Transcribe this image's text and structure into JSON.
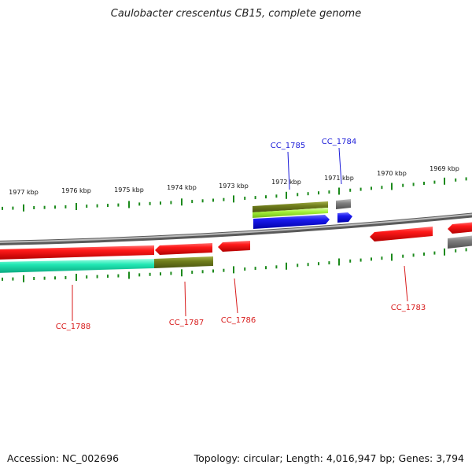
{
  "title": "Caulobacter crescentus CB15, complete genome",
  "footer": {
    "accession": "Accession: NC_002696",
    "summary": "Topology: circular; Length: 4,016,947 bp; Genes: 3,794"
  },
  "colors": {
    "backbone": "#8c8c8c",
    "tick": "#1c8a1c",
    "gene_red": "#ee1111",
    "gene_olive": "#6e7f1a",
    "gene_lime": "#a6f23a",
    "gene_blue": "#1414e6",
    "gene_teal": "#1ee6b0",
    "gene_gray": "#7a7a7a",
    "label_red": "#d81b1b",
    "label_blue": "#1b1bd8"
  },
  "kbp_labels": [
    "1977 kbp",
    "1976 kbp",
    "1975 kbp",
    "1974 kbp",
    "1973 kbp",
    "1972 kbp",
    "1971 kbp",
    "1970 kbp",
    "1969 kbp"
  ],
  "gene_labels": {
    "cc1788": "CC_1788",
    "cc1787": "CC_1787",
    "cc1786": "CC_1786",
    "cc1785": "CC_1785",
    "cc1784": "CC_1784",
    "cc1783": "CC_1783"
  }
}
